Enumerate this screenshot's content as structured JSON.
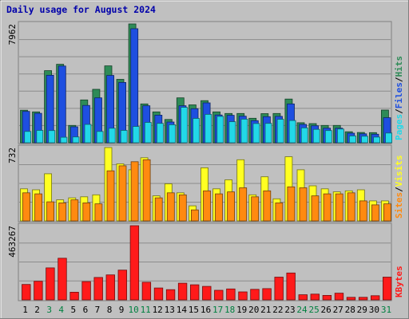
{
  "chart_data": {
    "type": "bar",
    "title": "Daily usage for August 2024",
    "categories": [
      "1",
      "2",
      "3",
      "4",
      "5",
      "6",
      "7",
      "8",
      "9",
      "10",
      "11",
      "12",
      "13",
      "14",
      "15",
      "16",
      "17",
      "18",
      "19",
      "20",
      "21",
      "22",
      "23",
      "24",
      "25",
      "26",
      "27",
      "28",
      "29",
      "30",
      "31"
    ],
    "weekend_days": [
      "3",
      "4",
      "10",
      "11",
      "17",
      "18",
      "24",
      "25",
      "31"
    ],
    "panels": [
      {
        "name": "top",
        "scale_max": 7962,
        "ylabel_max": "7962",
        "axis_label": [
          "Pages",
          "/",
          "Files",
          "/",
          "Hits"
        ],
        "series": [
          {
            "name": "Hits",
            "color": "#2e8b57",
            "values": [
              2180,
              2070,
              4830,
              5260,
              1160,
              2870,
              3580,
              5150,
              4250,
              7962,
              2600,
              2070,
              1560,
              3010,
              2540,
              2820,
              2070,
              1960,
              1960,
              1640,
              1950,
              1960,
              2930,
              1340,
              1280,
              1160,
              1160,
              740,
              690,
              680,
              2190
            ]
          },
          {
            "name": "Files",
            "color": "#1e4fe0",
            "values": [
              2100,
              1970,
              4520,
              5140,
              1070,
              2500,
              3010,
              4510,
              4040,
              7640,
              2480,
              1850,
              1390,
              2480,
              2280,
              2670,
              1860,
              1840,
              1780,
              1480,
              1750,
              1770,
              2600,
              1230,
              1140,
              980,
              980,
              640,
              600,
              570,
              1680
            ]
          },
          {
            "name": "Pages",
            "color": "#22d8e8",
            "values": [
              760,
              830,
              820,
              370,
              390,
              1230,
              760,
              970,
              830,
              1090,
              1360,
              1300,
              1210,
              2370,
              1630,
              1900,
              1770,
              1410,
              1580,
              1290,
              1300,
              1570,
              1490,
              1000,
              900,
              820,
              920,
              460,
              440,
              380,
              650
            ]
          }
        ]
      },
      {
        "name": "middle",
        "scale_max": 732,
        "ylabel_max": "732",
        "axis_label": [
          "Sites",
          "/",
          "Visits"
        ],
        "series": [
          {
            "name": "Visits",
            "color": "#ffff22",
            "values": [
              320,
              310,
              470,
              210,
              230,
              240,
              260,
              732,
              570,
              510,
              630,
              250,
              370,
              280,
              150,
              530,
              320,
              410,
              610,
              260,
              440,
              220,
              640,
              510,
              350,
              320,
              290,
              300,
              310,
              200,
              200
            ]
          },
          {
            "name": "Sites",
            "color": "#ff8a10",
            "values": [
              280,
              270,
              190,
              180,
              210,
              180,
              170,
              500,
              550,
              590,
              610,
              230,
              280,
              260,
              110,
              300,
              270,
              290,
              330,
              240,
              300,
              180,
              340,
              330,
              250,
              270,
              270,
              280,
              200,
              160,
              170
            ]
          }
        ]
      },
      {
        "name": "bottom",
        "scale_max": 463267,
        "ylabel_max": "463267",
        "axis_label": [
          "KBytes"
        ],
        "series": [
          {
            "name": "KBytes",
            "color": "#ff1a1a",
            "values": [
              96000,
              116000,
              200000,
              260000,
              48000,
              114000,
              140000,
              156000,
              186000,
              463267,
              110000,
              74000,
              64000,
              104000,
              94000,
              84000,
              60000,
              68000,
              50000,
              66000,
              70000,
              142000,
              168000,
              32000,
              36000,
              28000,
              42000,
              16000,
              16000,
              26000,
              142000
            ]
          }
        ]
      }
    ]
  }
}
